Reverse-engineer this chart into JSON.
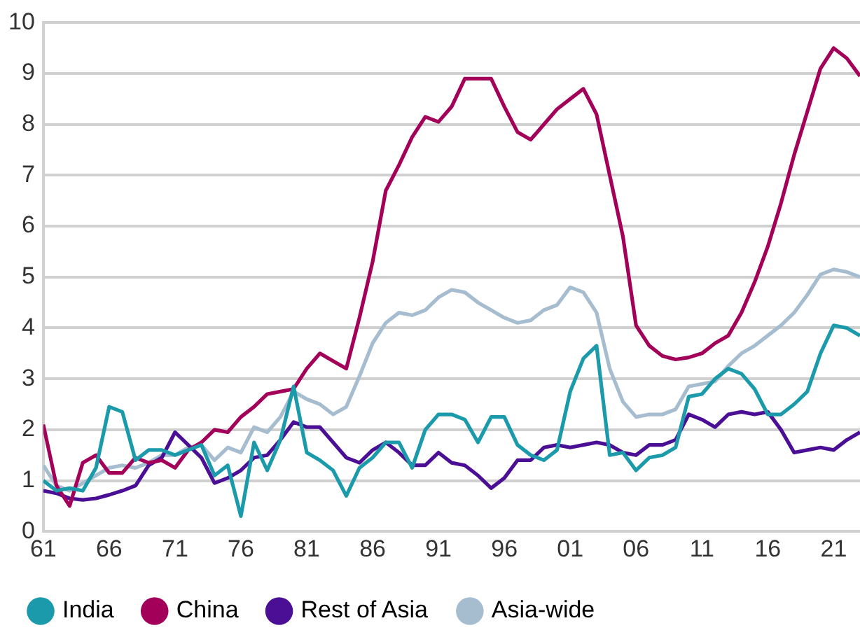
{
  "chart_data": {
    "type": "line",
    "x": [
      1961,
      1962,
      1963,
      1964,
      1965,
      1966,
      1967,
      1968,
      1969,
      1970,
      1971,
      1972,
      1973,
      1974,
      1975,
      1976,
      1977,
      1978,
      1979,
      1980,
      1981,
      1982,
      1983,
      1984,
      1985,
      1986,
      1987,
      1988,
      1989,
      1990,
      1991,
      1992,
      1993,
      1994,
      1995,
      1996,
      1997,
      1998,
      1999,
      2000,
      2001,
      2002,
      2003,
      2004,
      2005,
      2006,
      2007,
      2008,
      2009,
      2010,
      2011,
      2012,
      2013,
      2014,
      2015,
      2016,
      2017,
      2018,
      2019,
      2020,
      2021,
      2022,
      2023
    ],
    "series": [
      {
        "name": "India",
        "color": "#1a9aaa",
        "values": [
          1.0,
          0.8,
          0.85,
          0.8,
          1.25,
          2.45,
          2.35,
          1.4,
          1.6,
          1.6,
          1.5,
          1.6,
          1.7,
          1.1,
          1.3,
          0.3,
          1.75,
          1.2,
          1.8,
          2.85,
          1.55,
          1.4,
          1.2,
          0.7,
          1.25,
          1.45,
          1.75,
          1.75,
          1.25,
          2.0,
          2.3,
          2.3,
          2.2,
          1.75,
          2.25,
          2.25,
          1.7,
          1.5,
          1.4,
          1.6,
          2.75,
          3.4,
          3.65,
          1.5,
          1.55,
          1.2,
          1.45,
          1.5,
          1.65,
          2.65,
          2.7,
          3.0,
          3.2,
          3.1,
          2.8,
          2.3,
          2.3,
          2.5,
          2.75,
          3.5,
          4.05,
          4.0,
          3.85
        ]
      },
      {
        "name": "China",
        "color": "#a3005a",
        "values": [
          2.1,
          0.9,
          0.5,
          1.35,
          1.5,
          1.15,
          1.15,
          1.45,
          1.35,
          1.4,
          1.25,
          1.6,
          1.75,
          2.0,
          1.95,
          2.25,
          2.45,
          2.7,
          2.75,
          2.8,
          3.2,
          3.5,
          3.35,
          3.2,
          4.2,
          5.3,
          6.7,
          7.2,
          7.75,
          8.15,
          8.05,
          8.35,
          8.9,
          8.9,
          8.9,
          8.35,
          7.85,
          7.7,
          8.0,
          8.3,
          8.5,
          8.7,
          8.2,
          7.0,
          5.8,
          4.05,
          3.65,
          3.45,
          3.38,
          3.42,
          3.5,
          3.7,
          3.85,
          4.3,
          4.9,
          5.6,
          6.45,
          7.4,
          8.25,
          9.1,
          9.5,
          9.3,
          8.95
        ]
      },
      {
        "name": "Rest of Asia",
        "color": "#4b0f96",
        "values": [
          0.8,
          0.75,
          0.65,
          0.62,
          0.65,
          0.72,
          0.8,
          0.9,
          1.3,
          1.45,
          1.95,
          1.7,
          1.45,
          0.95,
          1.05,
          1.2,
          1.45,
          1.5,
          1.8,
          2.15,
          2.05,
          2.05,
          1.75,
          1.45,
          1.35,
          1.6,
          1.75,
          1.55,
          1.3,
          1.3,
          1.55,
          1.35,
          1.3,
          1.1,
          0.85,
          1.05,
          1.4,
          1.4,
          1.65,
          1.7,
          1.65,
          1.7,
          1.75,
          1.7,
          1.55,
          1.5,
          1.7,
          1.7,
          1.8,
          2.3,
          2.2,
          2.05,
          2.3,
          2.35,
          2.3,
          2.35,
          2.0,
          1.55,
          1.6,
          1.65,
          1.6,
          1.8,
          1.95
        ]
      },
      {
        "name": "Asia-wide",
        "color": "#a6bccf",
        "values": [
          1.3,
          0.9,
          0.8,
          0.95,
          1.1,
          1.25,
          1.3,
          1.25,
          1.35,
          1.5,
          1.5,
          1.65,
          1.7,
          1.4,
          1.65,
          1.55,
          2.05,
          1.95,
          2.25,
          2.75,
          2.6,
          2.5,
          2.3,
          2.45,
          3.05,
          3.7,
          4.1,
          4.3,
          4.25,
          4.35,
          4.6,
          4.75,
          4.7,
          4.5,
          4.35,
          4.2,
          4.1,
          4.15,
          4.35,
          4.45,
          4.8,
          4.7,
          4.3,
          3.2,
          2.55,
          2.25,
          2.3,
          2.3,
          2.4,
          2.85,
          2.9,
          2.95,
          3.25,
          3.5,
          3.65,
          3.85,
          4.05,
          4.3,
          4.65,
          5.05,
          5.15,
          5.1,
          5.0
        ]
      }
    ],
    "xlim": [
      1961,
      2023
    ],
    "xticks": [
      {
        "value": 1961,
        "label": "61"
      },
      {
        "value": 1966,
        "label": "66"
      },
      {
        "value": 1971,
        "label": "71"
      },
      {
        "value": 1976,
        "label": "76"
      },
      {
        "value": 1981,
        "label": "81"
      },
      {
        "value": 1986,
        "label": "86"
      },
      {
        "value": 1991,
        "label": "91"
      },
      {
        "value": 1996,
        "label": "96"
      },
      {
        "value": 2001,
        "label": "01"
      },
      {
        "value": 2006,
        "label": "06"
      },
      {
        "value": 2011,
        "label": "11"
      },
      {
        "value": 2016,
        "label": "16"
      },
      {
        "value": 2021,
        "label": "21"
      }
    ],
    "ylim": [
      0,
      10
    ],
    "yticks": [
      0,
      1,
      2,
      3,
      4,
      5,
      6,
      7,
      8,
      9,
      10
    ],
    "grid": "y",
    "legend": "bottom",
    "marker": "none",
    "line_style": "solid"
  }
}
